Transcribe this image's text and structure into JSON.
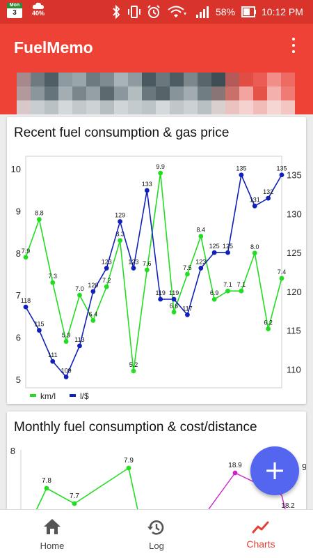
{
  "status_bar": {
    "calendar_day": "Mon",
    "calendar_date": "3",
    "weather_percent": "40%",
    "battery_percent": "58%",
    "time": "10:12 PM",
    "icons": [
      "calendar-icon",
      "cloud-icon",
      "bluetooth-icon",
      "vibrate-icon",
      "alarm-icon",
      "wifi-icon",
      "signal-icon",
      "battery-icon"
    ]
  },
  "app_bar": {
    "title": "FuelMemo",
    "menu_icon": "more-vert-icon"
  },
  "cards": [
    {
      "title": "Recent fuel consumption & gas price"
    },
    {
      "title": "Monthly fuel consumption & cost/distance"
    }
  ],
  "chart_data": [
    {
      "type": "line",
      "title": "Recent fuel consumption & gas price",
      "x": [
        1,
        2,
        3,
        4,
        5,
        6,
        7,
        8,
        9,
        10,
        11,
        12,
        13,
        14,
        15,
        16,
        17,
        18,
        19,
        20
      ],
      "series": [
        {
          "name": "km/l",
          "color": "#22dd22",
          "axis": "left",
          "values": [
            7.9,
            8.8,
            7.3,
            5.9,
            7.0,
            6.4,
            7.2,
            8.3,
            5.2,
            7.6,
            9.9,
            6.6,
            7.5,
            8.4,
            6.9,
            7.1,
            7.1,
            8.0,
            6.2,
            7.4
          ]
        },
        {
          "name": "l/$",
          "color": "#1020b8",
          "axis": "right",
          "values": [
            118,
            115,
            111,
            109,
            113,
            120,
            123,
            129,
            123,
            133,
            119,
            119,
            117,
            123,
            125,
            125,
            135,
            131,
            132,
            135
          ]
        }
      ],
      "y_left_ticks": [
        5,
        6,
        7,
        8,
        9,
        10
      ],
      "y_right_ticks": [
        110,
        115,
        120,
        125,
        130,
        135
      ],
      "ylim_left": [
        4.8,
        10.3
      ],
      "ylim_right": [
        107.6,
        137.4
      ],
      "legend_position": "bottom-left",
      "grid": false
    },
    {
      "type": "line",
      "title": "Monthly fuel consumption & cost/distance",
      "y_left_ticks": [
        8
      ],
      "series": [
        {
          "color": "#22dd22",
          "values": [
            7.8,
            7.7,
            7.9
          ]
        },
        {
          "color": "#cc22cc",
          "values": [
            18.9,
            18.2
          ]
        }
      ],
      "visible_right_tick_partial": "9"
    }
  ],
  "fab": {
    "label": "+",
    "icon": "add-icon"
  },
  "bottom_nav": {
    "items": [
      {
        "label": "Home",
        "icon": "home-icon",
        "active": false
      },
      {
        "label": "Log",
        "icon": "history-icon",
        "active": false
      },
      {
        "label": "Charts",
        "icon": "chart-icon",
        "active": true
      }
    ]
  },
  "colors": {
    "status_bar": "#d8342b",
    "app_bar": "#ef4237",
    "accent": "#e53f32",
    "fab": "#5466f0",
    "km_per_l": "#22dd22",
    "l_per_dollar": "#1020b8"
  }
}
